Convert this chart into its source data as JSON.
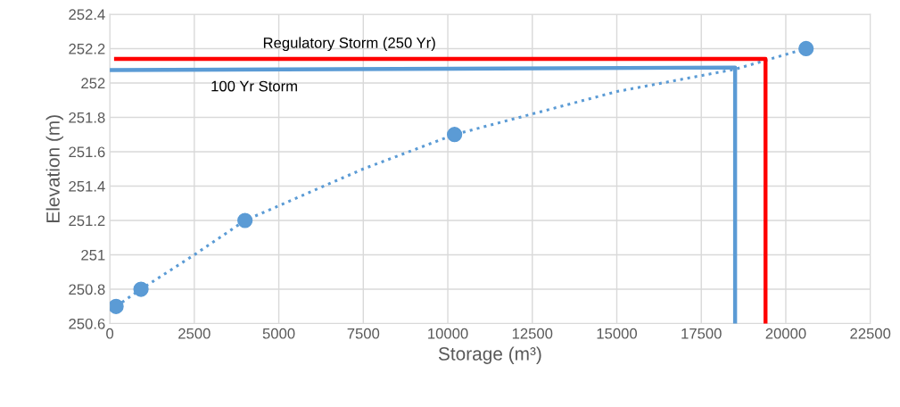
{
  "chart_data": {
    "type": "scatter",
    "xlabel": "Storage (m³)",
    "ylabel": "Elevation (m)",
    "xlim": [
      0,
      22500
    ],
    "xticks": [
      0,
      2500,
      5000,
      7500,
      10000,
      12500,
      15000,
      17500,
      20000,
      22500
    ],
    "ylim": [
      250.6,
      252.4
    ],
    "yticks": [
      250.6,
      250.8,
      251,
      251.2,
      251.4,
      251.6,
      251.8,
      252,
      252.2,
      252.4
    ],
    "grid": true,
    "legend": false,
    "series": [
      {
        "type": "line",
        "color": "#5b9bd5",
        "line_style": "dotted",
        "marker": "none",
        "x": [
          185,
          923,
          2500,
          4000,
          7500,
          10200,
          15000,
          18500,
          20600
        ],
        "values": [
          250.7,
          250.8,
          251.0,
          251.2,
          251.5,
          251.7,
          251.95,
          252.08,
          252.2
        ]
      },
      {
        "color": "#5b9bd5",
        "marker": "circle",
        "x": [
          185,
          923,
          4000,
          10200,
          20600
        ],
        "values": [
          250.7,
          250.8,
          251.2,
          251.7,
          252.2
        ]
      },
      {
        "type": "line",
        "name": "100 Yr Storm",
        "color": "#5b9bd5",
        "line_style": "solid",
        "marker": "none",
        "x": [
          0,
          18500,
          18500
        ],
        "values": [
          252.075,
          252.09,
          250.6
        ]
      },
      {
        "type": "line",
        "name": "Regulatory Storm (250 Yr)",
        "color": "#ff0000",
        "line_style": "solid",
        "marker": "none",
        "x": [
          185,
          19400,
          19400
        ],
        "values": [
          252.14,
          252.14,
          250.6
        ]
      }
    ]
  }
}
